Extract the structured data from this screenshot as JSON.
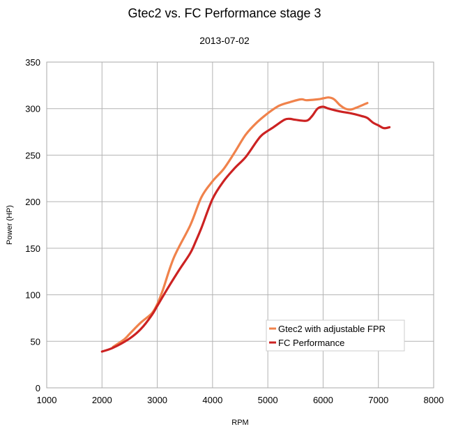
{
  "chart_data": {
    "type": "line",
    "title": "Gtec2 vs. FC Performance stage 3",
    "subtitle": "2013-07-02",
    "xlabel": "RPM",
    "ylabel": "Power (HP)",
    "xlim": [
      1000,
      8000
    ],
    "ylim": [
      0,
      350
    ],
    "xticks": [
      1000,
      2000,
      3000,
      4000,
      5000,
      6000,
      7000,
      8000
    ],
    "yticks": [
      0,
      50,
      100,
      150,
      200,
      250,
      300,
      350
    ],
    "grid": true,
    "legend_position": "bottom-right",
    "series": [
      {
        "name": "Gtec2 with adjustable FPR",
        "color": "#f0824b",
        "x": [
          2200,
          2400,
          2500,
          2700,
          2900,
          3000,
          3100,
          3300,
          3600,
          3800,
          4000,
          4200,
          4400,
          4600,
          4800,
          5000,
          5200,
          5400,
          5600,
          5700,
          5900,
          6000,
          6100,
          6200,
          6300,
          6400,
          6500,
          6600,
          6800
        ],
        "y": [
          44,
          52,
          58,
          70,
          80,
          90,
          105,
          140,
          175,
          205,
          222,
          235,
          253,
          272,
          285,
          295,
          303,
          307,
          310,
          309,
          310,
          311,
          312,
          310,
          304,
          300,
          299,
          301,
          306
        ]
      },
      {
        "name": "FC  Performance",
        "color": "#cc2222",
        "x": [
          2000,
          2200,
          2500,
          2700,
          2900,
          3000,
          3200,
          3400,
          3600,
          3700,
          3800,
          4000,
          4200,
          4400,
          4600,
          4800,
          4900,
          5100,
          5300,
          5400,
          5500,
          5700,
          5800,
          5900,
          6000,
          6100,
          6300,
          6500,
          6700,
          6800,
          6900,
          7000,
          7100,
          7200
        ],
        "y": [
          39,
          43,
          53,
          63,
          78,
          88,
          108,
          127,
          145,
          158,
          172,
          203,
          222,
          236,
          248,
          265,
          272,
          280,
          288,
          289,
          288,
          287,
          292,
          300,
          302,
          300,
          297,
          295,
          292,
          290,
          285,
          282,
          279,
          280
        ]
      }
    ]
  }
}
